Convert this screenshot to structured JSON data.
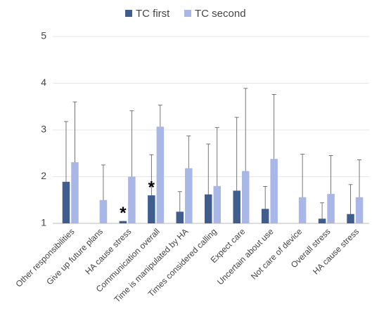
{
  "chart_data": {
    "type": "bar",
    "categories": [
      "Other responsibilities",
      "Give up future plans",
      "HA cause stress",
      "Communication overall",
      "Time is manipulated by HA",
      "Times considered calling",
      "Expect care",
      "Uncertain about use",
      "Not care of device",
      "Overall stress",
      "HA cause stress"
    ],
    "series": [
      {
        "name": "TC first",
        "color": "#3f5e8e",
        "values": [
          1.89,
          null,
          1.05,
          1.6,
          1.25,
          1.62,
          1.7,
          1.31,
          null,
          1.1,
          1.2
        ],
        "errors": [
          1.29,
          null,
          null,
          0.87,
          0.43,
          1.08,
          1.57,
          0.48,
          null,
          0.34,
          0.63
        ],
        "annotations": [
          null,
          null,
          "*",
          "*",
          null,
          null,
          null,
          null,
          null,
          null,
          null
        ]
      },
      {
        "name": "TC second",
        "color": "#a8b7e5",
        "values": [
          2.31,
          1.5,
          2.0,
          3.07,
          2.18,
          1.8,
          2.12,
          2.38,
          1.56,
          1.63,
          1.56
        ],
        "errors": [
          1.29,
          0.75,
          1.41,
          0.46,
          0.69,
          1.25,
          1.77,
          1.38,
          0.92,
          0.82,
          0.8
        ]
      }
    ],
    "ylim": [
      1,
      5
    ],
    "yticks": [
      1,
      2,
      3,
      4,
      5
    ],
    "grid": true,
    "legend": "top"
  }
}
